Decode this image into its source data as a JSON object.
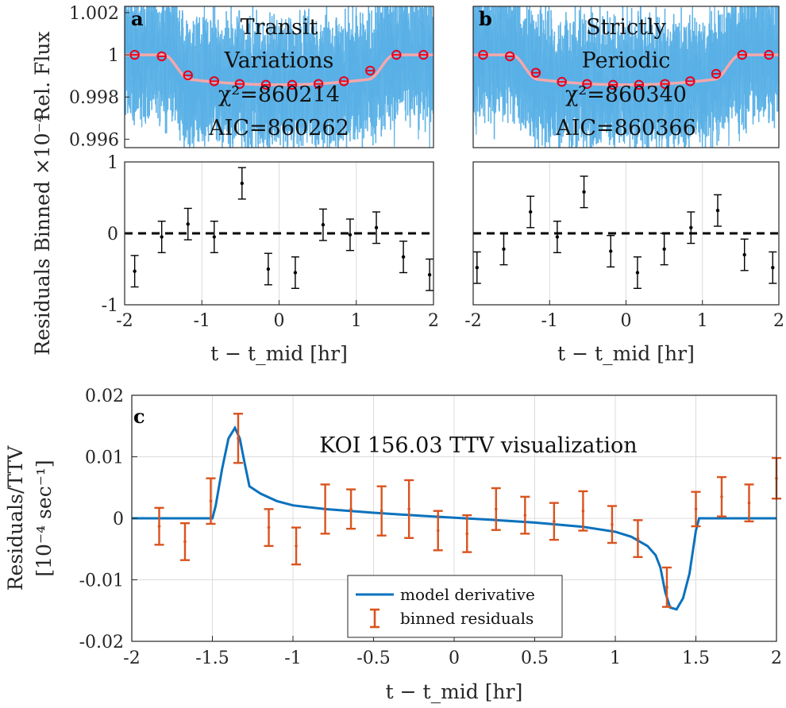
{
  "chart_data": [
    {
      "panel": "a",
      "type": "scatter",
      "title_lines": [
        "Transit",
        "Variations"
      ],
      "chi2_label": "χ²=860214",
      "aic_label": "AIC=860262",
      "ylabel": "Rel. Flux",
      "ylim": [
        0.9956,
        1.0023
      ],
      "yticks": [
        "1.002",
        "1",
        "0.998",
        "0.996"
      ],
      "colors": {
        "raw": "#58b0e6",
        "model": "#f4a7ab",
        "binned": "#e8001c"
      },
      "binned_x": [
        -1.87,
        -1.52,
        -1.18,
        -0.84,
        -0.51,
        -0.17,
        0.17,
        0.51,
        0.84,
        1.18,
        1.52,
        1.87
      ],
      "binned_y": [
        1.0,
        0.99993,
        0.99903,
        0.99875,
        0.99862,
        0.99858,
        0.99858,
        0.99862,
        0.99875,
        0.99925,
        1.0,
        1.0
      ]
    },
    {
      "panel": "b",
      "type": "scatter",
      "title_lines": [
        "Strictly",
        "Periodic"
      ],
      "chi2_label": "χ²=860340",
      "aic_label": "AIC=860366",
      "ylim": [
        0.9956,
        1.0023
      ],
      "binned_x": [
        -1.87,
        -1.52,
        -1.18,
        -0.84,
        -0.51,
        -0.17,
        0.17,
        0.51,
        0.84,
        1.18,
        1.52,
        1.87
      ],
      "binned_y": [
        1.0,
        0.99993,
        0.99915,
        0.99872,
        0.99862,
        0.99858,
        0.99858,
        0.99862,
        0.99875,
        0.9991,
        1.0,
        1.0
      ]
    },
    {
      "panel": "a-residuals",
      "type": "scatter",
      "ylabel": "Residuals Binned ×10⁻⁴",
      "xlabel": "t − t_mid [hr]",
      "xlim": [
        -2,
        2
      ],
      "ylim": [
        -1,
        1
      ],
      "xticks": [
        "-2",
        "-1",
        "0",
        "1",
        "2"
      ],
      "yticks": [
        "1",
        "0",
        "-1"
      ],
      "x": [
        -1.87,
        -1.52,
        -1.18,
        -0.84,
        -0.48,
        -0.14,
        0.21,
        0.57,
        0.92,
        1.26,
        1.61,
        1.95
      ],
      "y": [
        -0.53,
        -0.05,
        0.13,
        -0.05,
        0.7,
        -0.5,
        -0.55,
        0.12,
        -0.02,
        0.08,
        -0.33,
        -0.58
      ],
      "err": [
        0.22,
        0.22,
        0.22,
        0.22,
        0.22,
        0.22,
        0.22,
        0.22,
        0.22,
        0.22,
        0.22,
        0.22
      ]
    },
    {
      "panel": "b-residuals",
      "type": "scatter",
      "xlabel": "t − t_mid [hr]",
      "xlim": [
        -2,
        2
      ],
      "ylim": [
        -1,
        1
      ],
      "xticks": [
        "-2",
        "-1",
        "0",
        "1",
        "2"
      ],
      "x": [
        -1.95,
        -1.6,
        -1.25,
        -0.9,
        -0.55,
        -0.2,
        0.15,
        0.5,
        0.85,
        1.2,
        1.55,
        1.92
      ],
      "y": [
        -0.48,
        -0.22,
        0.3,
        -0.05,
        0.58,
        -0.25,
        -0.55,
        -0.22,
        0.08,
        0.32,
        -0.3,
        -0.48
      ],
      "err": [
        0.22,
        0.22,
        0.22,
        0.22,
        0.22,
        0.22,
        0.22,
        0.22,
        0.22,
        0.22,
        0.22,
        0.22
      ]
    },
    {
      "panel": "c",
      "type": "line",
      "title": "KOI 156.03 TTV visualization",
      "xlabel": "t − t_mid [hr]",
      "ylabel_lines": [
        "Residuals/TTV",
        "[10⁻⁴ sec⁻¹]"
      ],
      "xlim": [
        -2,
        2
      ],
      "ylim": [
        -0.02,
        0.02
      ],
      "xticks": [
        "-2",
        "-1.5",
        "-1",
        "-0.5",
        "0",
        "0.5",
        "1",
        "1.5",
        "2"
      ],
      "yticks": [
        "0.02",
        "0.01",
        "0",
        "-0.01",
        "-0.02"
      ],
      "grid": true,
      "legend_placement": "bottom-center",
      "series": [
        {
          "name": "model derivative",
          "color": "#0a72bd",
          "x": [
            -2,
            -1.5,
            -1.48,
            -1.44,
            -1.4,
            -1.36,
            -1.33,
            -1.3,
            -1.27,
            -1.2,
            -1.1,
            -1.0,
            -0.8,
            -0.5,
            -0.2,
            0.0,
            0.2,
            0.5,
            0.8,
            1.0,
            1.1,
            1.2,
            1.25,
            1.28,
            1.31,
            1.34,
            1.38,
            1.42,
            1.46,
            1.5,
            1.52,
            2
          ],
          "y": [
            0,
            0,
            0.002,
            0.008,
            0.013,
            0.0147,
            0.013,
            0.009,
            0.0052,
            0.004,
            0.0028,
            0.0021,
            0.0015,
            0.0009,
            0.0004,
            0.0001,
            -0.0002,
            -0.0007,
            -0.0014,
            -0.0022,
            -0.003,
            -0.0045,
            -0.006,
            -0.008,
            -0.012,
            -0.0145,
            -0.0148,
            -0.013,
            -0.009,
            -0.002,
            0,
            0
          ]
        },
        {
          "name": "binned residuals",
          "color": "#d9531e",
          "x": [
            -1.83,
            -1.67,
            -1.51,
            -1.34,
            -1.15,
            -0.98,
            -0.8,
            -0.64,
            -0.45,
            -0.28,
            -0.1,
            0.08,
            0.26,
            0.44,
            0.62,
            0.8,
            0.98,
            1.14,
            1.32,
            1.5,
            1.66,
            1.83,
            2.0
          ],
          "y": [
            -0.0013,
            -0.0038,
            0.0028,
            0.013,
            -0.0015,
            -0.0045,
            0.0015,
            0.0015,
            0.0012,
            0.0015,
            -0.002,
            -0.0025,
            0.0015,
            0.0005,
            -0.0005,
            0.0012,
            -0.001,
            -0.0033,
            -0.0112,
            0.0015,
            0.0035,
            0.0025,
            0.0065
          ],
          "err": [
            0.003,
            0.003,
            0.0037,
            0.004,
            0.003,
            0.003,
            0.004,
            0.0032,
            0.004,
            0.0047,
            0.0032,
            0.003,
            0.0034,
            0.003,
            0.003,
            0.0032,
            0.003,
            0.003,
            0.0032,
            0.0028,
            0.0032,
            0.003,
            0.0033
          ]
        }
      ]
    }
  ],
  "labels": {
    "a": "a",
    "b": "b",
    "c": "c"
  }
}
